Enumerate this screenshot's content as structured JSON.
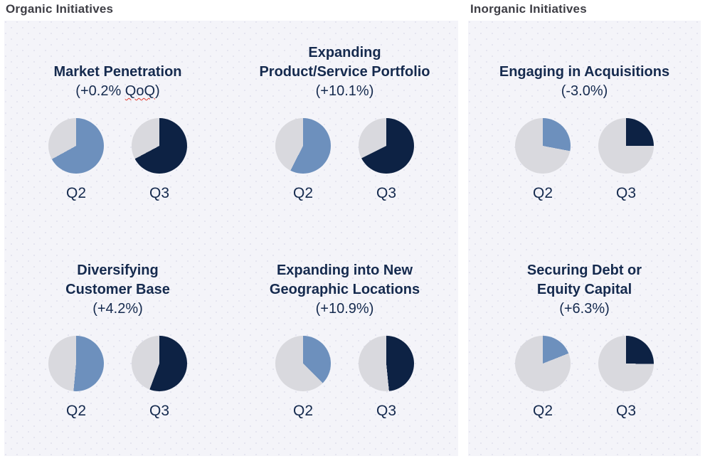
{
  "headers": {
    "organic": "Organic Initiatives",
    "inorganic": "Inorganic Initiatives"
  },
  "colors": {
    "q2_slice": "#6d90bd",
    "q3_slice": "#0d2244",
    "remainder_slice": "#d9d9de",
    "panel_background": "#f4f4f9",
    "panel_dot": "#e4e4ef",
    "heading_text": "#3e3e45",
    "navy_text": "#152a4e",
    "spellcheck_underline": "#e0392e"
  },
  "chart_data": [
    {
      "type": "pie",
      "section": "Organic Initiatives",
      "title": "Market Penetration",
      "title_display": "Market Penetration",
      "subtitle": "(+0.2% QoQ)",
      "subtitle_pre": "(+0.2% ",
      "subtitle_word": "QoQ",
      "subtitle_post": ")",
      "change_pct": 0.2,
      "categories": [
        "Q2",
        "Q3"
      ],
      "values_pct": {
        "Q2": 67.0,
        "Q3": 67.2
      }
    },
    {
      "type": "pie",
      "section": "Organic Initiatives",
      "title": "Expanding Product/Service Portfolio",
      "title_display": "Expanding\nProduct/Service Portfolio",
      "subtitle": "(+10.1%)",
      "change_pct": 10.1,
      "categories": [
        "Q2",
        "Q3"
      ],
      "values_pct": {
        "Q2": 57.5,
        "Q3": 67.6
      }
    },
    {
      "type": "pie",
      "section": "Organic Initiatives",
      "title": "Diversifying Customer Base",
      "title_display": "Diversifying\nCustomer Base",
      "subtitle": "(+4.2%)",
      "change_pct": 4.2,
      "categories": [
        "Q2",
        "Q3"
      ],
      "values_pct": {
        "Q2": 51.5,
        "Q3": 55.7
      }
    },
    {
      "type": "pie",
      "section": "Organic Initiatives",
      "title": "Expanding into New Geographic Locations",
      "title_display": "Expanding into New\nGeographic Locations",
      "subtitle": "(+10.9%)",
      "change_pct": 10.9,
      "categories": [
        "Q2",
        "Q3"
      ],
      "values_pct": {
        "Q2": 37.5,
        "Q3": 48.4
      }
    },
    {
      "type": "pie",
      "section": "Inorganic Initiatives",
      "title": "Engaging in Acquisitions",
      "title_display": "Engaging in Acquisitions",
      "subtitle": "(-3.0%)",
      "change_pct": -3.0,
      "categories": [
        "Q2",
        "Q3"
      ],
      "values_pct": {
        "Q2": 28.0,
        "Q3": 25.0
      }
    },
    {
      "type": "pie",
      "section": "Inorganic Initiatives",
      "title": "Securing Debt or Equity Capital",
      "title_display": "Securing Debt or\nEquity Capital",
      "subtitle": "(+6.3%)",
      "change_pct": 6.3,
      "categories": [
        "Q2",
        "Q3"
      ],
      "values_pct": {
        "Q2": 19.0,
        "Q3": 25.3
      }
    }
  ]
}
